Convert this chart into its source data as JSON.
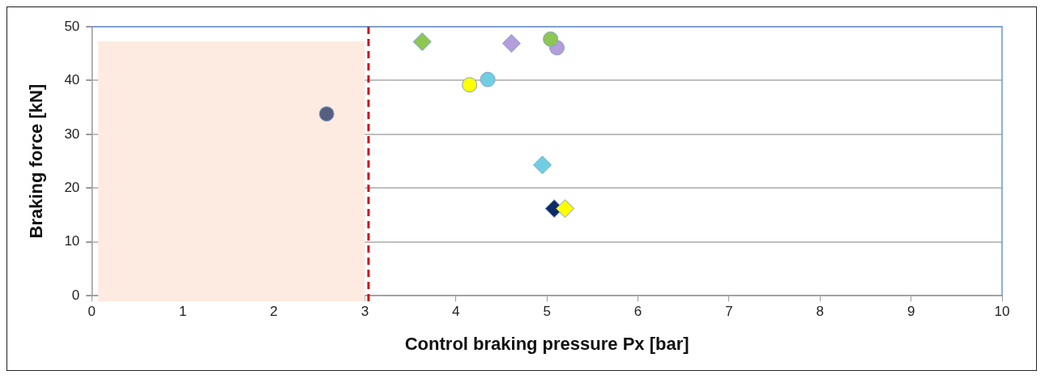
{
  "chart_data": {
    "type": "scatter",
    "xlabel": "Control braking pressure Px [bar]",
    "ylabel": "Braking force [kN]",
    "series": [
      {
        "marker": "circle",
        "x": [
          2.58,
          4.15,
          4.35,
          5.11,
          5.04
        ],
        "values": [
          33.8,
          39.2,
          40.2,
          46.1,
          47.7
        ],
        "colors": [
          "#575f7f",
          "#ffff00",
          "#6fcfe0",
          "#b39ddb",
          "#8dc652"
        ]
      },
      {
        "marker": "diamond",
        "x": [
          3.63,
          4.61,
          4.95,
          5.08,
          5.2
        ],
        "values": [
          47.2,
          46.9,
          24.3,
          16.2,
          16.2
        ],
        "colors": [
          "#8dc652",
          "#b39ddb",
          "#6fcfe0",
          "#0c2a66",
          "#ffff00"
        ]
      }
    ],
    "xlim": [
      0,
      10
    ],
    "xticks": [
      0,
      1,
      2,
      3,
      4,
      5,
      6,
      7,
      8,
      9,
      10
    ],
    "ylim": [
      0,
      50
    ],
    "yticks": [
      0,
      10,
      20,
      30,
      40,
      50
    ],
    "grid": "y",
    "legend": false,
    "ref_lines": [
      {
        "axis": "x",
        "value": 3.04,
        "color": "#cc1020",
        "line_style": "dashed"
      }
    ],
    "bands": [
      {
        "axis": "x",
        "from": 0.07,
        "to": 3.0,
        "color": "#fdebe1"
      }
    ]
  }
}
